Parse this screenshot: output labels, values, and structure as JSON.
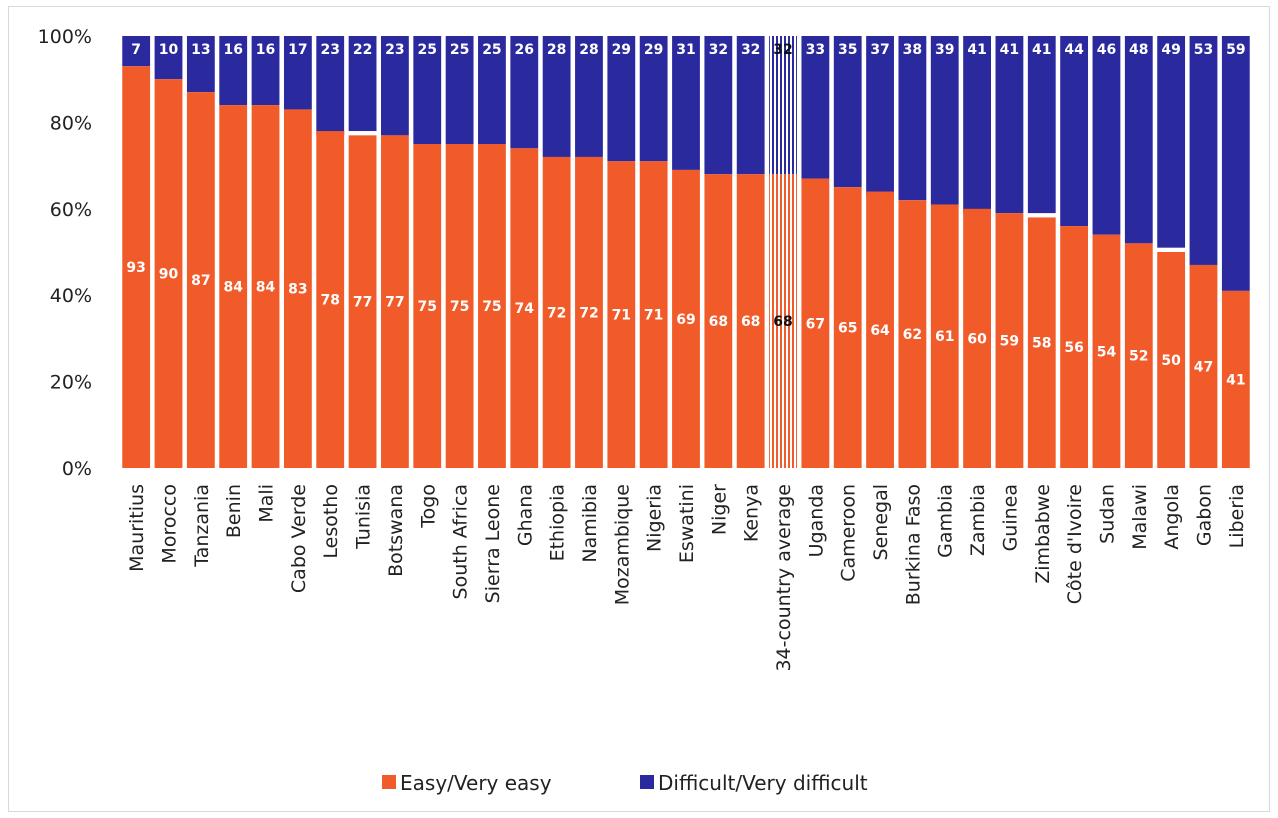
{
  "chart_data": {
    "type": "bar",
    "stacked": true,
    "categories": [
      "Mauritius",
      "Morocco",
      "Tanzania",
      "Benin",
      "Mali",
      "Cabo Verde",
      "Lesotho",
      "Tunisia",
      "Botswana",
      "Togo",
      "South Africa",
      "Sierra Leone",
      "Ghana",
      "Ethiopia",
      "Namibia",
      "Mozambique",
      "Nigeria",
      "Eswatini",
      "Niger",
      "Kenya",
      "34-country average",
      "Uganda",
      "Cameroon",
      "Senegal",
      "Burkina Faso",
      "Gambia",
      "Zambia",
      "Guinea",
      "Zimbabwe",
      "Côte d'Ivoire",
      "Sudan",
      "Malawi",
      "Angola",
      "Gabon",
      "Liberia"
    ],
    "series": [
      {
        "name": "Easy/Very easy",
        "color": "#F15A29",
        "values": [
          93,
          90,
          87,
          84,
          84,
          83,
          78,
          77,
          77,
          75,
          75,
          75,
          74,
          72,
          72,
          71,
          71,
          69,
          68,
          68,
          68,
          67,
          65,
          64,
          62,
          61,
          60,
          59,
          58,
          56,
          54,
          52,
          50,
          47,
          41
        ]
      },
      {
        "name": "Difficult/Very difficult",
        "color": "#2A2A9E",
        "values": [
          7,
          10,
          13,
          16,
          16,
          17,
          23,
          22,
          23,
          25,
          25,
          25,
          26,
          28,
          28,
          29,
          29,
          31,
          32,
          32,
          32,
          33,
          35,
          37,
          38,
          39,
          41,
          41,
          41,
          44,
          46,
          48,
          49,
          53,
          59
        ]
      }
    ],
    "highlight_category": "34-country average",
    "y_ticks": [
      "0%",
      "20%",
      "40%",
      "60%",
      "80%",
      "100%"
    ],
    "ylim": [
      0,
      100
    ],
    "legend_position": "bottom",
    "grid": false
  }
}
